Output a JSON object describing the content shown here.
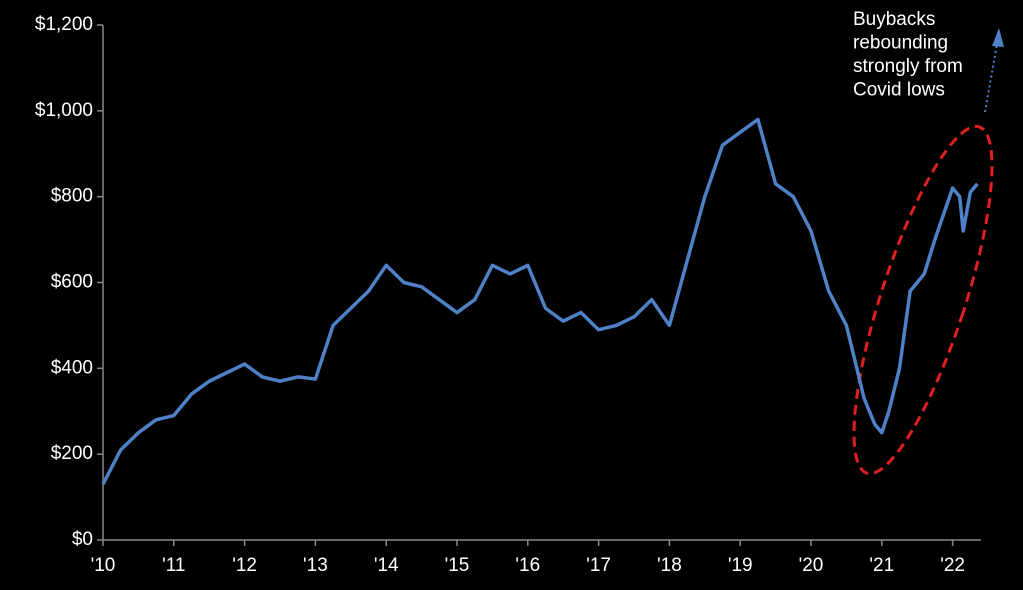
{
  "chart_data": {
    "type": "line",
    "x": [
      2010.0,
      2010.25,
      2010.5,
      2010.75,
      2011.0,
      2011.25,
      2011.5,
      2011.75,
      2012.0,
      2012.25,
      2012.5,
      2012.75,
      2013.0,
      2013.25,
      2013.5,
      2013.75,
      2014.0,
      2014.25,
      2014.5,
      2014.75,
      2015.0,
      2015.25,
      2015.5,
      2015.75,
      2016.0,
      2016.25,
      2016.5,
      2016.75,
      2017.0,
      2017.25,
      2017.5,
      2017.75,
      2018.0,
      2018.25,
      2018.5,
      2018.75,
      2019.0,
      2019.25,
      2019.5,
      2019.75,
      2020.0,
      2020.25,
      2020.5,
      2020.75,
      2020.9,
      2021.0,
      2021.1,
      2021.25,
      2021.4,
      2021.6,
      2021.75,
      2022.0,
      2022.1,
      2022.15,
      2022.25,
      2022.35
    ],
    "series": [
      {
        "color": "#4f81c7",
        "values": [
          130,
          210,
          250,
          280,
          290,
          340,
          370,
          390,
          410,
          380,
          370,
          380,
          375,
          500,
          540,
          580,
          640,
          600,
          590,
          560,
          530,
          560,
          640,
          620,
          640,
          540,
          510,
          530,
          490,
          500,
          520,
          560,
          500,
          650,
          800,
          920,
          950,
          980,
          830,
          800,
          720,
          580,
          500,
          330,
          270,
          250,
          300,
          400,
          580,
          620,
          700,
          820,
          800,
          720,
          810,
          830
        ]
      }
    ],
    "xlim": [
      2010,
      2022.4
    ],
    "xticks": [
      {
        "value": 2010,
        "label": "'10"
      },
      {
        "value": 2011,
        "label": "'11"
      },
      {
        "value": 2012,
        "label": "'12"
      },
      {
        "value": 2013,
        "label": "'13"
      },
      {
        "value": 2014,
        "label": "'14"
      },
      {
        "value": 2015,
        "label": "'15"
      },
      {
        "value": 2016,
        "label": "'16"
      },
      {
        "value": 2017,
        "label": "'17"
      },
      {
        "value": 2018,
        "label": "'18"
      },
      {
        "value": 2019,
        "label": "'19"
      },
      {
        "value": 2020,
        "label": "'20"
      },
      {
        "value": 2021,
        "label": "'21"
      },
      {
        "value": 2022,
        "label": "'22"
      }
    ],
    "ylim": [
      0,
      1200
    ],
    "yticks": [
      {
        "value": 0,
        "label": "$0"
      },
      {
        "value": 200,
        "label": "$200"
      },
      {
        "value": 400,
        "label": "$400"
      },
      {
        "value": 600,
        "label": "$600"
      },
      {
        "value": 800,
        "label": "$800"
      },
      {
        "value": 1000,
        "label": "$1,000"
      },
      {
        "value": 1200,
        "label": "$1,200"
      }
    ],
    "annotation": [
      "Buybacks",
      "rebounding",
      "strongly from",
      "Covid lows"
    ]
  }
}
